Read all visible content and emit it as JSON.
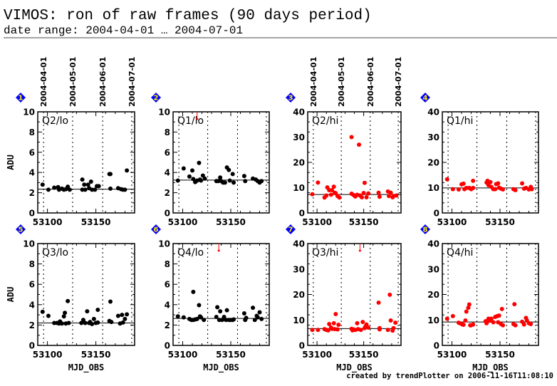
{
  "header": {
    "title": "VIMOS: ron of raw frames (90 days period)",
    "subtitle": "date range: 2004-04-01 … 2004-07-01"
  },
  "footer": "created by trendPlotter on 2006-11-16T11:08:10",
  "colors": {
    "lo": "#000000",
    "hi": "#ff0000",
    "badge": "#0000ff",
    "badge_text": "#ffef00"
  },
  "date_markers": {
    "labels": [
      "2004-04-01",
      "2004-05-01",
      "2004-06-01",
      "2004-07-01"
    ],
    "mjd": [
      53096,
      53126,
      53157,
      53187
    ]
  },
  "chart_data": [
    {
      "type": "scatter",
      "panel": "1",
      "label": "Q2/lo",
      "ylabel": "ADU",
      "xlabel": "",
      "xlim": [
        53090,
        53190
      ],
      "ylim": [
        0,
        10
      ],
      "yticks": [
        0,
        2,
        4,
        6,
        8,
        10
      ],
      "xticks": [
        53100,
        53150
      ],
      "mean": 2.35,
      "color": "black",
      "offscale": [],
      "x": [
        53095,
        53101,
        53107,
        53111,
        53112,
        53115,
        53117,
        53119,
        53121,
        53123,
        53136,
        53136,
        53138,
        53139,
        53142,
        53143,
        53145,
        53146,
        53149,
        53151,
        53153,
        53164,
        53165,
        53165,
        53173,
        53176,
        53178,
        53180,
        53182
      ],
      "y": [
        2.8,
        2.3,
        2.5,
        2.55,
        2.3,
        2.4,
        2.3,
        2.35,
        2.6,
        2.3,
        2.3,
        3.3,
        2.8,
        2.3,
        2.8,
        2.45,
        3.1,
        2.3,
        2.3,
        2.65,
        2.65,
        3.85,
        3.85,
        2.4,
        2.45,
        2.35,
        2.3,
        2.3,
        4.2
      ]
    },
    {
      "type": "scatter",
      "panel": "2",
      "label": "Q1/lo",
      "ylabel": "",
      "xlabel": "",
      "xlim": [
        53090,
        53190
      ],
      "ylim": [
        0,
        10
      ],
      "yticks": [
        0,
        2,
        4,
        6,
        8,
        10
      ],
      "xticks": [
        53100,
        53150
      ],
      "mean": 3.25,
      "color": "black",
      "offscale": [
        53115
      ],
      "x": [
        53095,
        53101,
        53107,
        53110,
        53111,
        53113,
        53115,
        53117,
        53118,
        53119,
        53121,
        53123,
        53135,
        53137,
        53139,
        53140,
        53142,
        53144,
        53146,
        53148,
        53149,
        53152,
        53153,
        53164,
        53165,
        53173,
        53176,
        53178,
        53180,
        53182
      ],
      "y": [
        3.2,
        4.4,
        3.6,
        4.2,
        3.35,
        3.05,
        3.2,
        4.95,
        3.3,
        3.2,
        3.7,
        3.4,
        3.15,
        3.15,
        3.5,
        3.15,
        3.0,
        3.0,
        4.5,
        4.25,
        3.2,
        3.85,
        3.0,
        3.65,
        3.15,
        3.4,
        3.3,
        3.15,
        3.0,
        3.15
      ]
    },
    {
      "type": "scatter",
      "panel": "3",
      "label": "Q2/hi",
      "ylabel": "",
      "xlabel": "",
      "xlim": [
        53090,
        53190
      ],
      "ylim": [
        0,
        40
      ],
      "yticks": [
        0,
        10,
        20,
        30,
        40
      ],
      "xticks": [
        53100,
        53150
      ],
      "mean": 7.3,
      "color": "red",
      "offscale": [],
      "x": [
        53095,
        53101,
        53108,
        53110,
        53111,
        53113,
        53115,
        53116,
        53118,
        53119,
        53120,
        53122,
        53124,
        53137,
        53137,
        53139,
        53141,
        53143,
        53145,
        53146,
        53148,
        53150,
        53151,
        53153,
        53155,
        53166,
        53167,
        53176,
        53177,
        53179,
        53181,
        53182,
        53185
      ],
      "y": [
        7.4,
        12,
        6.1,
        6.9,
        10.1,
        9.0,
        7.2,
        9.0,
        10.4,
        8.0,
        7.8,
        6.7,
        6.1,
        30,
        7.6,
        7.1,
        6.5,
        7.2,
        27,
        6.9,
        6.2,
        7.9,
        11.9,
        6.2,
        7.7,
        8.0,
        6.4,
        8.5,
        6.7,
        8.0,
        6.2,
        6.7,
        6.9
      ]
    },
    {
      "type": "scatter",
      "panel": "4",
      "label": "Q1/hi",
      "ylabel": "",
      "xlabel": "",
      "xlim": [
        53090,
        53190
      ],
      "ylim": [
        0,
        40
      ],
      "yticks": [
        0,
        10,
        20,
        30,
        40
      ],
      "xticks": [
        53100,
        53150
      ],
      "mean": 9.9,
      "color": "red",
      "offscale": [],
      "x": [
        53095,
        53101,
        53107,
        53110,
        53112,
        53113,
        53115,
        53118,
        53120,
        53122,
        53122,
        53136,
        53137,
        53138,
        53140,
        53141,
        53143,
        53145,
        53146,
        53148,
        53149,
        53151,
        53153,
        53164,
        53166,
        53173,
        53175,
        53177,
        53180,
        53182,
        53183
      ],
      "y": [
        13.3,
        9.4,
        9.3,
        11.3,
        11.6,
        9.4,
        9.9,
        9.9,
        9.4,
        9.9,
        12.7,
        12.0,
        12.7,
        11.0,
        12.2,
        10.3,
        9.4,
        9.4,
        11.4,
        11.7,
        10.0,
        9.6,
        9.3,
        9.4,
        9.0,
        11.7,
        9.6,
        9.9,
        9.3,
        10.3,
        9.4
      ]
    },
    {
      "type": "scatter",
      "panel": "5",
      "label": "Q3/lo",
      "ylabel": "ADU",
      "xlabel": "MJD_OBS",
      "xlim": [
        53090,
        53190
      ],
      "ylim": [
        0,
        10
      ],
      "yticks": [
        0,
        2,
        4,
        6,
        8,
        10
      ],
      "xticks": [
        53100,
        53150
      ],
      "mean": 2.2,
      "color": "black",
      "offscale": [],
      "x": [
        53095,
        53101,
        53107,
        53110,
        53112,
        53113,
        53115,
        53117,
        53118,
        53119,
        53121,
        53122,
        53135,
        53137,
        53139,
        53141,
        53143,
        53144,
        53146,
        53148,
        53150,
        53152,
        53152,
        53164,
        53165,
        53166,
        53173,
        53175,
        53177,
        53178,
        53180,
        53182
      ],
      "y": [
        3.3,
        2.9,
        2.2,
        2.2,
        2.15,
        2.35,
        2.15,
        2.85,
        3.2,
        2.15,
        4.35,
        2.2,
        2.2,
        2.5,
        2.2,
        3.35,
        2.2,
        2.3,
        2.1,
        2.6,
        2.2,
        2.25,
        3.5,
        2.4,
        4.3,
        2.3,
        2.9,
        2.15,
        3.0,
        2.25,
        2.6,
        3.05
      ]
    },
    {
      "type": "scatter",
      "panel": "6",
      "label": "Q4/lo",
      "ylabel": "",
      "xlabel": "MJD_OBS",
      "xlim": [
        53090,
        53190
      ],
      "ylim": [
        0,
        10
      ],
      "yticks": [
        0,
        2,
        4,
        6,
        8,
        10
      ],
      "xticks": [
        53100,
        53150
      ],
      "mean": 2.65,
      "color": "black",
      "offscale": [
        53137.5
      ],
      "x": [
        53095,
        53101,
        53107,
        53109,
        53111,
        53111,
        53113,
        53115,
        53117,
        53118,
        53119,
        53122,
        53135,
        53136,
        53138,
        53139,
        53141,
        53143,
        53145,
        53146,
        53148,
        53150,
        53152,
        53153,
        53164,
        53165,
        53166,
        53173,
        53175,
        53177,
        53178,
        53180,
        53182
      ],
      "y": [
        2.85,
        2.75,
        2.6,
        2.5,
        5.25,
        2.5,
        2.55,
        2.6,
        3.95,
        2.85,
        2.75,
        2.5,
        2.8,
        3.75,
        2.5,
        3.35,
        2.5,
        2.8,
        2.5,
        3.45,
        2.5,
        2.5,
        2.5,
        2.55,
        3.15,
        2.5,
        2.7,
        3.7,
        2.5,
        2.9,
        2.75,
        3.25,
        2.6
      ]
    },
    {
      "type": "scatter",
      "panel": "7",
      "label": "Q3/hi",
      "ylabel": "",
      "xlabel": "MJD_OBS",
      "xlim": [
        53090,
        53190
      ],
      "ylim": [
        0,
        40
      ],
      "yticks": [
        0,
        10,
        20,
        30,
        40
      ],
      "xticks": [
        53100,
        53150
      ],
      "mean": 6.6,
      "color": "red",
      "offscale": [
        53146
      ],
      "x": [
        53095,
        53101,
        53108,
        53110,
        53112,
        53113,
        53115,
        53116,
        53118,
        53119,
        53120,
        53122,
        53123,
        53137,
        53138,
        53139,
        53141,
        53143,
        53144,
        53147,
        53149,
        53151,
        53152,
        53153,
        53155,
        53166,
        53167,
        53167,
        53176,
        53178,
        53179,
        53181,
        53182,
        53184
      ],
      "y": [
        6.1,
        6.1,
        6.4,
        6.1,
        5.9,
        8.4,
        7.0,
        6.5,
        8.7,
        6.4,
        12.3,
        6.3,
        8.1,
        6.5,
        5.9,
        6.3,
        6.1,
        8.7,
        6.4,
        6.1,
        9.2,
        6.8,
        7.5,
        8.2,
        7.0,
        16.8,
        6.8,
        6.3,
        6.1,
        19.9,
        9.8,
        5.8,
        6.8,
        8.9
      ]
    },
    {
      "type": "scatter",
      "panel": "8",
      "label": "Q4/hi",
      "ylabel": "",
      "xlabel": "MJD_OBS",
      "xlim": [
        53090,
        53190
      ],
      "ylim": [
        0,
        40
      ],
      "yticks": [
        0,
        10,
        20,
        30,
        40
      ],
      "xticks": [
        53100,
        53150
      ],
      "mean": 9.2,
      "color": "red",
      "offscale": [],
      "x": [
        53095,
        53101,
        53107,
        53109,
        53111,
        53112,
        53114,
        53115,
        53117,
        53118,
        53119,
        53120,
        53122,
        53135,
        53136,
        53138,
        53139,
        53141,
        53143,
        53145,
        53147,
        53148,
        53149,
        53151,
        53152,
        53153,
        53164,
        53165,
        53166,
        53173,
        53175,
        53177,
        53178,
        53180,
        53182
      ],
      "y": [
        10.5,
        11.5,
        8.9,
        8.6,
        8.2,
        8.1,
        9.8,
        13.3,
        14.8,
        16.1,
        7.9,
        7.9,
        8.2,
        9.5,
        8.7,
        10.5,
        9.7,
        10.5,
        9.1,
        11.2,
        11.5,
        9.1,
        11.7,
        8.4,
        14.3,
        7.9,
        8.4,
        16.2,
        7.9,
        9.3,
        8.2,
        10.8,
        9.8,
        8.7,
        8.4
      ]
    }
  ]
}
